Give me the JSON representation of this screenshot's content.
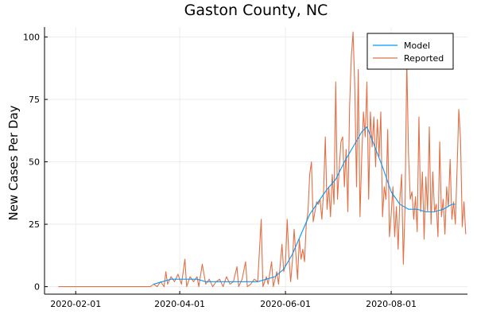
{
  "chart_data": {
    "type": "line",
    "title": "Gaston County, NC",
    "xlabel": "",
    "ylabel": "New Cases Per Day",
    "x_axis": {
      "type": "date",
      "range": [
        "2020-01-14",
        "2020-09-14"
      ],
      "ticks": [
        "2020-02-01",
        "2020-04-01",
        "2020-06-01",
        "2020-08-01"
      ]
    },
    "y_axis": {
      "range": [
        -3,
        104
      ],
      "ticks": [
        0,
        25,
        50,
        75,
        100
      ]
    },
    "grid": true,
    "legend": {
      "position": "top-right"
    },
    "series": [
      {
        "name": "Model",
        "color": "#009af9",
        "points": [
          [
            "2020-03-17",
            1
          ],
          [
            "2020-03-22",
            2
          ],
          [
            "2020-03-27",
            3
          ],
          [
            "2020-04-01",
            3
          ],
          [
            "2020-04-06",
            3
          ],
          [
            "2020-04-11",
            3
          ],
          [
            "2020-04-16",
            2
          ],
          [
            "2020-04-21",
            2
          ],
          [
            "2020-04-26",
            2
          ],
          [
            "2020-05-01",
            2
          ],
          [
            "2020-05-06",
            2
          ],
          [
            "2020-05-11",
            2
          ],
          [
            "2020-05-16",
            2
          ],
          [
            "2020-05-21",
            3
          ],
          [
            "2020-05-26",
            4
          ],
          [
            "2020-05-31",
            7
          ],
          [
            "2020-06-05",
            13
          ],
          [
            "2020-06-10",
            21
          ],
          [
            "2020-06-15",
            29
          ],
          [
            "2020-06-20",
            34
          ],
          [
            "2020-06-25",
            39
          ],
          [
            "2020-06-30",
            43
          ],
          [
            "2020-07-05",
            50
          ],
          [
            "2020-07-10",
            56
          ],
          [
            "2020-07-15",
            62
          ],
          [
            "2020-07-18",
            64
          ],
          [
            "2020-07-22",
            57
          ],
          [
            "2020-07-27",
            48
          ],
          [
            "2020-08-01",
            38
          ],
          [
            "2020-08-06",
            33
          ],
          [
            "2020-08-11",
            31
          ],
          [
            "2020-08-16",
            31
          ],
          [
            "2020-08-21",
            30
          ],
          [
            "2020-08-26",
            30
          ],
          [
            "2020-08-31",
            31
          ],
          [
            "2020-09-05",
            33
          ],
          [
            "2020-09-07",
            33
          ]
        ]
      },
      {
        "name": "Reported",
        "color": "#e26f46",
        "points": [
          [
            "2020-01-22",
            0
          ],
          [
            "2020-03-15",
            0
          ],
          [
            "2020-03-17",
            1
          ],
          [
            "2020-03-19",
            0
          ],
          [
            "2020-03-21",
            2
          ],
          [
            "2020-03-23",
            0
          ],
          [
            "2020-03-24",
            6
          ],
          [
            "2020-03-25",
            1
          ],
          [
            "2020-03-27",
            4
          ],
          [
            "2020-03-29",
            2
          ],
          [
            "2020-03-31",
            5
          ],
          [
            "2020-04-02",
            1
          ],
          [
            "2020-04-04",
            11
          ],
          [
            "2020-04-05",
            0
          ],
          [
            "2020-04-07",
            4
          ],
          [
            "2020-04-09",
            2
          ],
          [
            "2020-04-11",
            4
          ],
          [
            "2020-04-12",
            0
          ],
          [
            "2020-04-14",
            9
          ],
          [
            "2020-04-16",
            1
          ],
          [
            "2020-04-18",
            3
          ],
          [
            "2020-04-20",
            0
          ],
          [
            "2020-04-22",
            2
          ],
          [
            "2020-04-24",
            3
          ],
          [
            "2020-04-26",
            0
          ],
          [
            "2020-04-28",
            4
          ],
          [
            "2020-04-30",
            1
          ],
          [
            "2020-05-02",
            2
          ],
          [
            "2020-05-04",
            8
          ],
          [
            "2020-05-05",
            0
          ],
          [
            "2020-05-07",
            3
          ],
          [
            "2020-05-09",
            10
          ],
          [
            "2020-05-10",
            0
          ],
          [
            "2020-05-12",
            1
          ],
          [
            "2020-05-14",
            3
          ],
          [
            "2020-05-16",
            2
          ],
          [
            "2020-05-18",
            27
          ],
          [
            "2020-05-19",
            0
          ],
          [
            "2020-05-21",
            4
          ],
          [
            "2020-05-22",
            1
          ],
          [
            "2020-05-24",
            10
          ],
          [
            "2020-05-25",
            0
          ],
          [
            "2020-05-27",
            6
          ],
          [
            "2020-05-28",
            1
          ],
          [
            "2020-05-30",
            17
          ],
          [
            "2020-05-31",
            6
          ],
          [
            "2020-06-01",
            9
          ],
          [
            "2020-06-02",
            27
          ],
          [
            "2020-06-03",
            12
          ],
          [
            "2020-06-04",
            2
          ],
          [
            "2020-06-05",
            10
          ],
          [
            "2020-06-06",
            23
          ],
          [
            "2020-06-07",
            13
          ],
          [
            "2020-06-08",
            3
          ],
          [
            "2020-06-09",
            19
          ],
          [
            "2020-06-10",
            11
          ],
          [
            "2020-06-11",
            15
          ],
          [
            "2020-06-12",
            10
          ],
          [
            "2020-06-13",
            25
          ],
          [
            "2020-06-14",
            30
          ],
          [
            "2020-06-15",
            45
          ],
          [
            "2020-06-16",
            50
          ],
          [
            "2020-06-17",
            26
          ],
          [
            "2020-06-18",
            30
          ],
          [
            "2020-06-19",
            34
          ],
          [
            "2020-06-20",
            33
          ],
          [
            "2020-06-21",
            35
          ],
          [
            "2020-06-22",
            27
          ],
          [
            "2020-06-23",
            38
          ],
          [
            "2020-06-24",
            60
          ],
          [
            "2020-06-25",
            31
          ],
          [
            "2020-06-26",
            40
          ],
          [
            "2020-06-27",
            28
          ],
          [
            "2020-06-28",
            45
          ],
          [
            "2020-06-29",
            33
          ],
          [
            "2020-06-30",
            82
          ],
          [
            "2020-07-01",
            35
          ],
          [
            "2020-07-02",
            47
          ],
          [
            "2020-07-03",
            58
          ],
          [
            "2020-07-04",
            60
          ],
          [
            "2020-07-05",
            40
          ],
          [
            "2020-07-06",
            55
          ],
          [
            "2020-07-07",
            30
          ],
          [
            "2020-07-08",
            72
          ],
          [
            "2020-07-09",
            92
          ],
          [
            "2020-07-10",
            102
          ],
          [
            "2020-07-11",
            80
          ],
          [
            "2020-07-12",
            40
          ],
          [
            "2020-07-13",
            87
          ],
          [
            "2020-07-14",
            28
          ],
          [
            "2020-07-15",
            52
          ],
          [
            "2020-07-16",
            70
          ],
          [
            "2020-07-17",
            60
          ],
          [
            "2020-07-18",
            82
          ],
          [
            "2020-07-19",
            35
          ],
          [
            "2020-07-20",
            70
          ],
          [
            "2020-07-21",
            56
          ],
          [
            "2020-07-22",
            68
          ],
          [
            "2020-07-23",
            48
          ],
          [
            "2020-07-24",
            67
          ],
          [
            "2020-07-25",
            52
          ],
          [
            "2020-07-26",
            70
          ],
          [
            "2020-07-27",
            28
          ],
          [
            "2020-07-28",
            40
          ],
          [
            "2020-07-29",
            35
          ],
          [
            "2020-07-30",
            63
          ],
          [
            "2020-07-31",
            20
          ],
          [
            "2020-08-01",
            29
          ],
          [
            "2020-08-02",
            40
          ],
          [
            "2020-08-03",
            20
          ],
          [
            "2020-08-04",
            32
          ],
          [
            "2020-08-05",
            15
          ],
          [
            "2020-08-06",
            35
          ],
          [
            "2020-08-07",
            45
          ],
          [
            "2020-08-08",
            9
          ],
          [
            "2020-08-09",
            32
          ],
          [
            "2020-08-10",
            90
          ],
          [
            "2020-08-11",
            53
          ],
          [
            "2020-08-12",
            35
          ],
          [
            "2020-08-13",
            38
          ],
          [
            "2020-08-14",
            27
          ],
          [
            "2020-08-15",
            36
          ],
          [
            "2020-08-16",
            22
          ],
          [
            "2020-08-17",
            68
          ],
          [
            "2020-08-18",
            30
          ],
          [
            "2020-08-19",
            46
          ],
          [
            "2020-08-20",
            19
          ],
          [
            "2020-08-21",
            44
          ],
          [
            "2020-08-22",
            30
          ],
          [
            "2020-08-23",
            64
          ],
          [
            "2020-08-24",
            25
          ],
          [
            "2020-08-25",
            46
          ],
          [
            "2020-08-26",
            30
          ],
          [
            "2020-08-27",
            33
          ],
          [
            "2020-08-28",
            20
          ],
          [
            "2020-08-29",
            58
          ],
          [
            "2020-08-30",
            28
          ],
          [
            "2020-08-31",
            35
          ],
          [
            "2020-09-01",
            21
          ],
          [
            "2020-09-02",
            40
          ],
          [
            "2020-09-03",
            32
          ],
          [
            "2020-09-04",
            51
          ],
          [
            "2020-09-05",
            27
          ],
          [
            "2020-09-06",
            34
          ],
          [
            "2020-09-07",
            25
          ],
          [
            "2020-09-08",
            47
          ],
          [
            "2020-09-09",
            71
          ],
          [
            "2020-09-10",
            59
          ],
          [
            "2020-09-11",
            24
          ],
          [
            "2020-09-12",
            34
          ],
          [
            "2020-09-13",
            21
          ]
        ]
      }
    ]
  },
  "colors": {
    "axis": "#000000",
    "grid": "#e9e9e9",
    "background": "#ffffff"
  }
}
